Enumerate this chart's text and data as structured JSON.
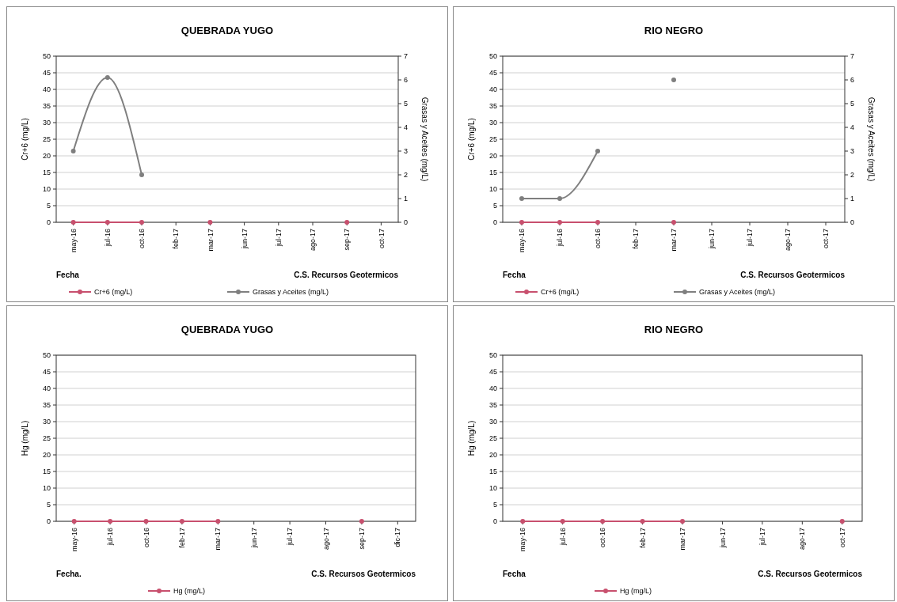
{
  "chart_data": [
    {
      "type": "line",
      "title": "QUEBRADA YUGO",
      "xlabel": "Fecha",
      "ylabel": "Cr+6 (mg/L)",
      "y2label": "Grasas y Aceites (mg/L)",
      "categories": [
        "may-16",
        "jul-16",
        "oct-16",
        "feb-17",
        "mar-17",
        "jun-17",
        "jul-17",
        "ago-17",
        "sep-17",
        "oct-17"
      ],
      "series": [
        {
          "name": "Cr+6 (mg/L)",
          "color": "#c8506e",
          "values": [
            0,
            0,
            0,
            null,
            0,
            null,
            null,
            null,
            0,
            null
          ]
        },
        {
          "name": "Grasas y Aceites (mg/L)",
          "color": "#7f7f7f",
          "axis": "y2",
          "values": [
            3.0,
            6.1,
            2.0,
            null,
            null,
            null,
            null,
            null,
            null,
            null
          ]
        }
      ],
      "ylim": [
        0,
        50
      ],
      "yticks": [
        0,
        5,
        10,
        15,
        20,
        25,
        30,
        35,
        40,
        45,
        50
      ],
      "y2lim": [
        0,
        7
      ],
      "y2ticks": [
        0,
        1,
        2,
        3,
        4,
        5,
        6,
        7
      ],
      "grid": "y",
      "legend": "bottom",
      "marker": "circle",
      "annotations": [
        "C.S. Recursos Geotermicos"
      ]
    },
    {
      "type": "line",
      "title": "RIO NEGRO",
      "xlabel": "Fecha",
      "ylabel": "Cr+6 (mg/L)",
      "y2label": "Grasas y Aceites (mg/L)",
      "categories": [
        "may-16",
        "jul-16",
        "oct-16",
        "feb-17",
        "mar-17",
        "jun-17",
        "jul-17",
        "ago-17",
        "oct-17"
      ],
      "series": [
        {
          "name": "Cr+6 (mg/L)",
          "color": "#c8506e",
          "values": [
            0,
            0,
            0,
            null,
            0,
            null,
            null,
            null,
            null
          ]
        },
        {
          "name": "Grasas y Aceites (mg/L)",
          "color": "#7f7f7f",
          "axis": "y2",
          "values": [
            1.0,
            1.0,
            3.0,
            null,
            6.0,
            null,
            null,
            null,
            null
          ]
        }
      ],
      "ylim": [
        0,
        50
      ],
      "yticks": [
        0,
        5,
        10,
        15,
        20,
        25,
        30,
        35,
        40,
        45,
        50
      ],
      "y2lim": [
        0,
        7
      ],
      "y2ticks": [
        0,
        1,
        2,
        3,
        4,
        5,
        6,
        7
      ],
      "grid": "y",
      "legend": "bottom",
      "marker": "circle",
      "annotations": [
        "C.S. Recursos Geotermicos"
      ]
    },
    {
      "type": "line",
      "title": "QUEBRADA YUGO",
      "xlabel": "Fecha.",
      "ylabel": "Hg (mg/L)",
      "categories": [
        "may-16",
        "jul-16",
        "oct-16",
        "feb-17",
        "mar-17",
        "jun-17",
        "jul-17",
        "ago-17",
        "sep-17",
        "dic-17"
      ],
      "series": [
        {
          "name": "Hg (mg/L)",
          "color": "#c8506e",
          "values": [
            0,
            0,
            0,
            0,
            0,
            null,
            null,
            null,
            0,
            null
          ]
        }
      ],
      "ylim": [
        0,
        50
      ],
      "yticks": [
        0,
        5,
        10,
        15,
        20,
        25,
        30,
        35,
        40,
        45,
        50
      ],
      "grid": "y",
      "legend": "bottom",
      "marker": "circle",
      "annotations": [
        "C.S. Recursos Geotermicos"
      ]
    },
    {
      "type": "line",
      "title": "RIO NEGRO",
      "xlabel": "Fecha",
      "ylabel": "Hg (mg/L)",
      "categories": [
        "may-16",
        "jul-16",
        "oct-16",
        "feb-17",
        "mar-17",
        "jun-17",
        "jul-17",
        "ago-17",
        "oct-17"
      ],
      "series": [
        {
          "name": "Hg (mg/L)",
          "color": "#c8506e",
          "values": [
            0,
            0,
            0,
            0,
            0,
            null,
            null,
            null,
            0
          ]
        }
      ],
      "ylim": [
        0,
        50
      ],
      "yticks": [
        0,
        5,
        10,
        15,
        20,
        25,
        30,
        35,
        40,
        45,
        50
      ],
      "grid": "y",
      "legend": "bottom",
      "marker": "circle",
      "annotations": [
        "C.S. Recursos Geotermicos"
      ]
    }
  ]
}
